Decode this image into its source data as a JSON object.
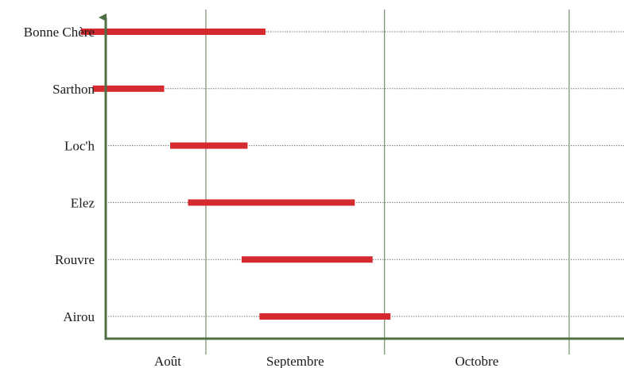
{
  "chart_data": {
    "type": "bar",
    "orientation": "horizontal-range",
    "categories": [
      "Bonne Chère",
      "Sarthon",
      "Loc'h",
      "Elez",
      "Rouvre",
      "Airou"
    ],
    "months": [
      "Août",
      "Septembre",
      "Octobre"
    ],
    "x_unit": "days from 1 August",
    "xlim": [
      0,
      92
    ],
    "ranges": [
      {
        "category": "Bonne Chère",
        "start": 10,
        "end": 41
      },
      {
        "category": "Sarthon",
        "start": 12,
        "end": 24
      },
      {
        "category": "Loc'h",
        "start": 25,
        "end": 38
      },
      {
        "category": "Elez",
        "start": 28,
        "end": 56
      },
      {
        "category": "Rouvre",
        "start": 37,
        "end": 59
      },
      {
        "category": "Airou",
        "start": 40,
        "end": 62
      }
    ],
    "grid": "month separators (vertical), dotted category guides (horizontal)",
    "colors": {
      "bar": "#d42a2f",
      "axis": "#4f6f43",
      "grid": "#5b7a4f",
      "guide": "#7a7a7a"
    }
  }
}
